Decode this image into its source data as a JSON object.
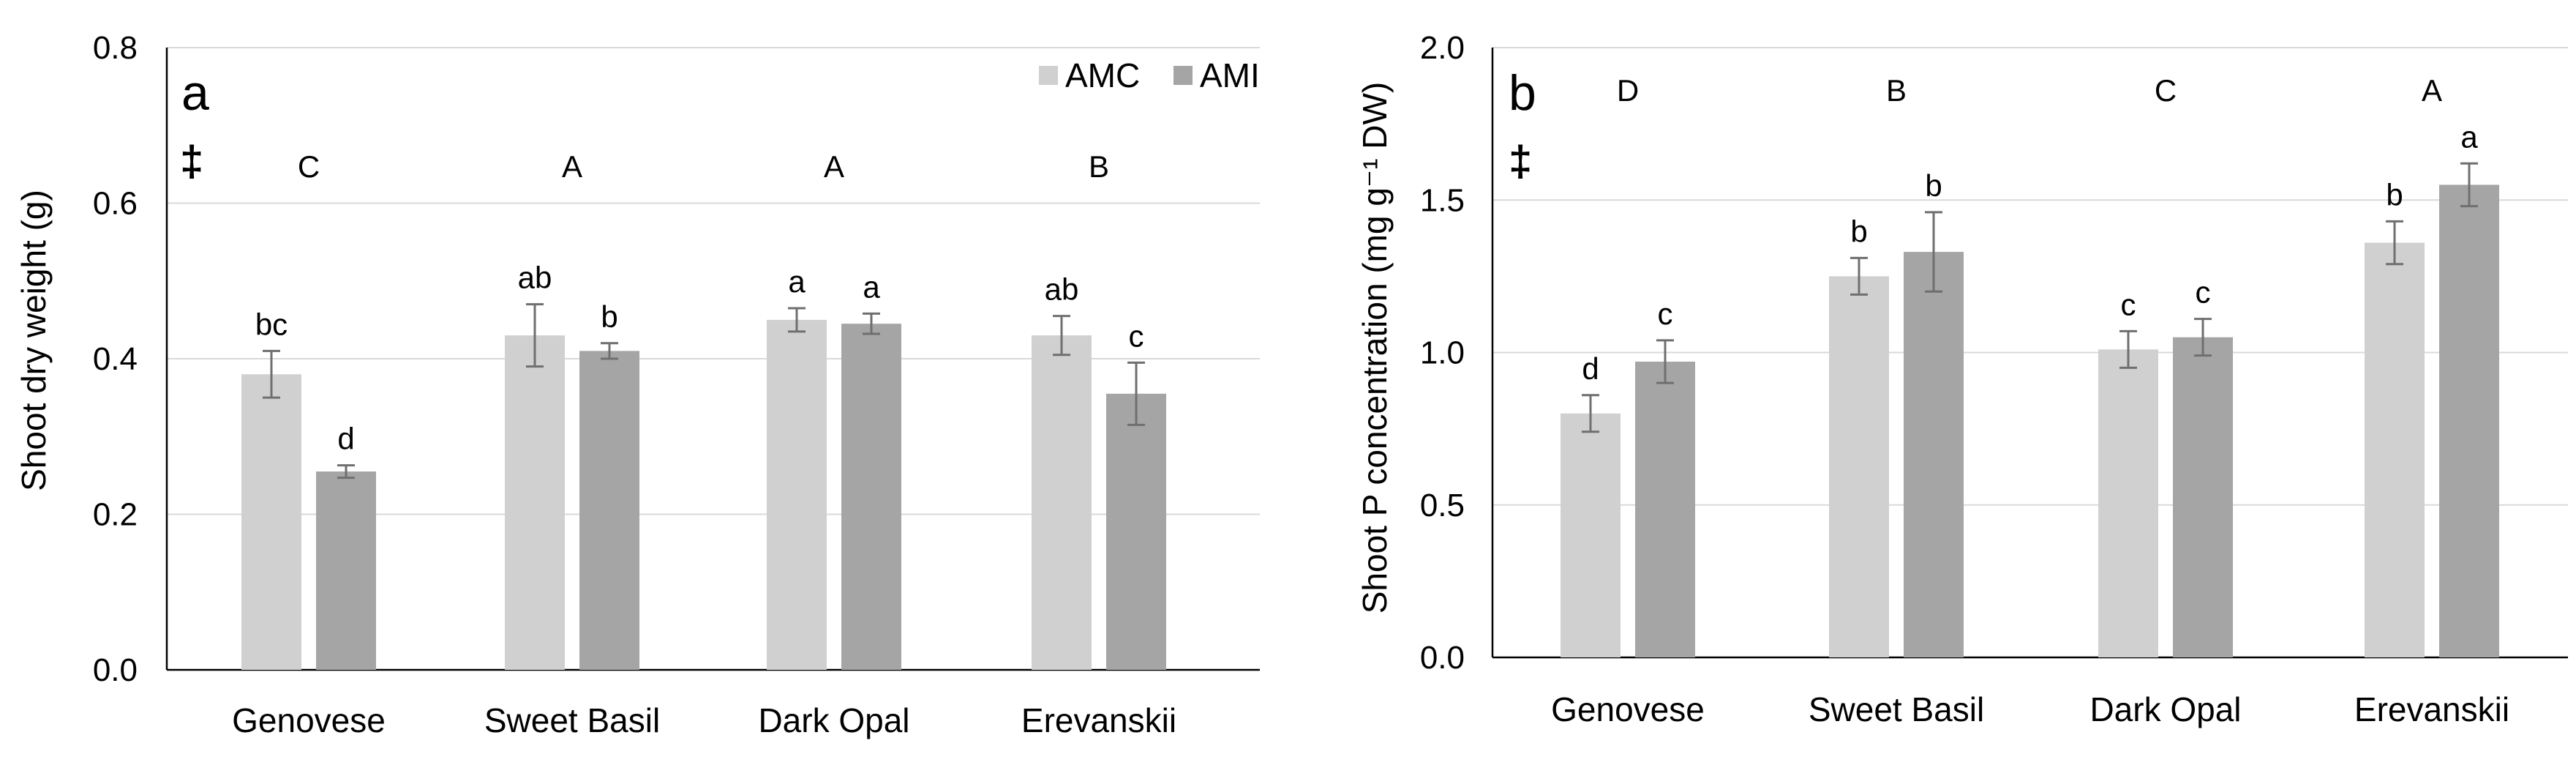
{
  "colors": {
    "AMC": "#d0d0d0",
    "AMI": "#a5a5a5"
  },
  "legend": {
    "items": [
      "AMC",
      "AMI"
    ]
  },
  "chart_data": [
    {
      "type": "bar",
      "panel_label": "a",
      "significance_mark": "‡",
      "ylabel": "Shoot dry weight (g)",
      "ylim": [
        0,
        0.8
      ],
      "yticks": [
        "0.0",
        "0.2",
        "0.4",
        "0.6",
        "0.8"
      ],
      "categories": [
        "Genovese",
        "Sweet Basil",
        "Dark Opal",
        "Erevanskii"
      ],
      "group_letters": [
        "C",
        "A",
        "A",
        "B"
      ],
      "series": [
        {
          "name": "AMC",
          "values": [
            0.38,
            0.43,
            0.45,
            0.43
          ],
          "errors": [
            0.03,
            0.04,
            0.015,
            0.025
          ],
          "letters": [
            "bc",
            "ab",
            "a",
            "ab"
          ]
        },
        {
          "name": "AMI",
          "values": [
            0.255,
            0.41,
            0.445,
            0.355
          ],
          "errors": [
            0.008,
            0.01,
            0.013,
            0.04
          ],
          "letters": [
            "d",
            "b",
            "a",
            "c"
          ]
        }
      ]
    },
    {
      "type": "bar",
      "panel_label": "b",
      "significance_mark": "‡",
      "ylabel": "Shoot P concentration (mg g⁻¹ DW)",
      "ylim": [
        0,
        2.0
      ],
      "yticks": [
        "0.0",
        "0.5",
        "1.0",
        "1.5",
        "2.0"
      ],
      "categories": [
        "Genovese",
        "Sweet Basil",
        "Dark Opal",
        "Erevanskii"
      ],
      "group_letters": [
        "D",
        "B",
        "C",
        "A"
      ],
      "series": [
        {
          "name": "AMC",
          "values": [
            0.8,
            1.25,
            1.01,
            1.36
          ],
          "errors": [
            0.06,
            0.06,
            0.06,
            0.07
          ],
          "letters": [
            "d",
            "b",
            "c",
            "b"
          ]
        },
        {
          "name": "AMI",
          "values": [
            0.97,
            1.33,
            1.05,
            1.55
          ],
          "errors": [
            0.07,
            0.13,
            0.06,
            0.07
          ],
          "letters": [
            "c",
            "b",
            "c",
            "a"
          ]
        }
      ]
    }
  ]
}
